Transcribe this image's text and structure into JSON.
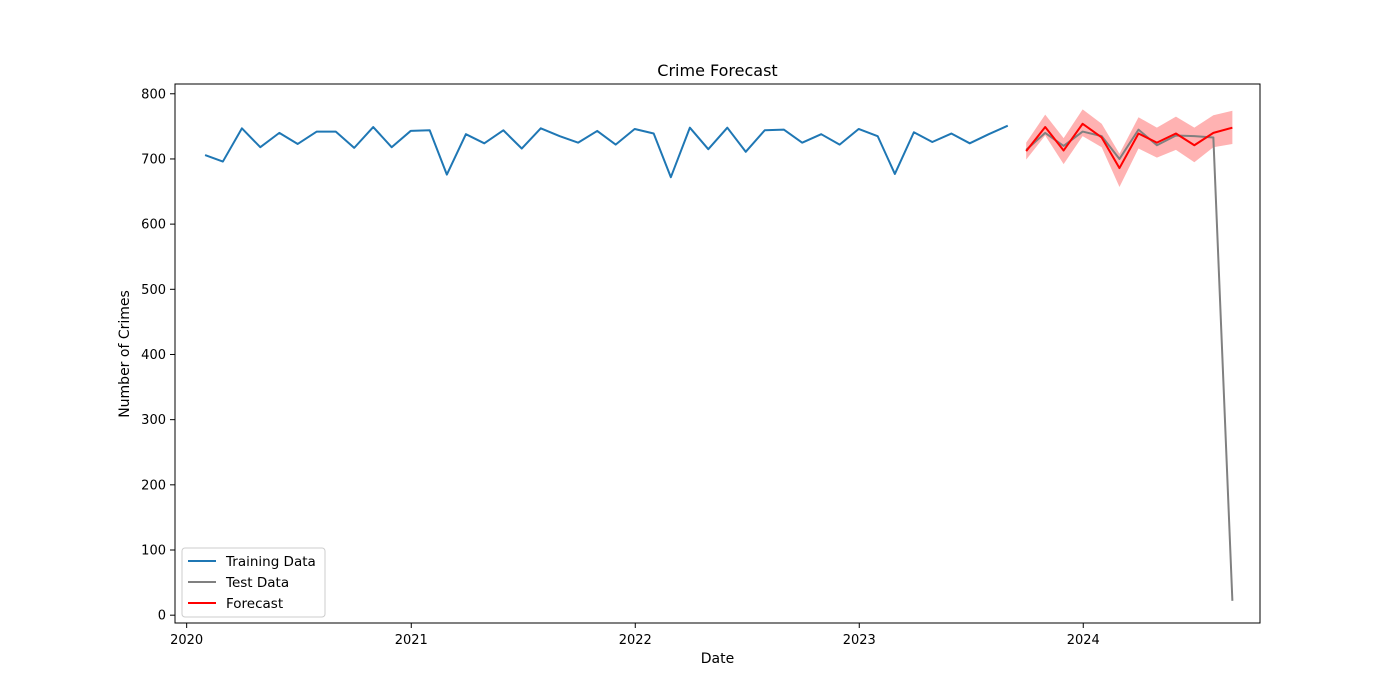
{
  "chart_data": {
    "type": "line",
    "title": "Crime Forecast",
    "xlabel": "Date",
    "ylabel": "Number of Crimes",
    "xlim": [
      "2019-12-13",
      "2024-10-15"
    ],
    "ylim": [
      -12,
      815
    ],
    "x_ticks": [
      "2020-01-01",
      "2021-01-01",
      "2022-01-01",
      "2023-01-01",
      "2024-01-01"
    ],
    "x_tick_labels": [
      "2020",
      "2021",
      "2022",
      "2023",
      "2024"
    ],
    "y_ticks": [
      0,
      100,
      200,
      300,
      400,
      500,
      600,
      700,
      800
    ],
    "y_tick_labels": [
      "0",
      "100",
      "200",
      "300",
      "400",
      "500",
      "600",
      "700",
      "800"
    ],
    "grid": false,
    "legend_position": "lower-left",
    "colors": {
      "training": "#1f77b4",
      "test": "#808080",
      "forecast": "#ff0000",
      "interval": "#ff0000"
    },
    "series": [
      {
        "name": "Training Data",
        "x": [
          "2020-01-31",
          "2020-02-29",
          "2020-03-31",
          "2020-04-30",
          "2020-05-31",
          "2020-06-30",
          "2020-07-31",
          "2020-08-31",
          "2020-09-30",
          "2020-10-31",
          "2020-11-30",
          "2020-12-31",
          "2021-01-31",
          "2021-02-28",
          "2021-03-31",
          "2021-04-30",
          "2021-05-31",
          "2021-06-30",
          "2021-07-31",
          "2021-08-31",
          "2021-09-30",
          "2021-10-31",
          "2021-11-30",
          "2021-12-31",
          "2022-01-31",
          "2022-02-28",
          "2022-03-31",
          "2022-04-30",
          "2022-05-31",
          "2022-06-30",
          "2022-07-31",
          "2022-08-31",
          "2022-09-30",
          "2022-10-31",
          "2022-11-30",
          "2022-12-31",
          "2023-01-31",
          "2023-02-28",
          "2023-03-31",
          "2023-04-30",
          "2023-05-31",
          "2023-06-30",
          "2023-07-31",
          "2023-08-31"
        ],
        "y": [
          706,
          696,
          747,
          718,
          740,
          723,
          742,
          742,
          717,
          749,
          718,
          743,
          744,
          676,
          738,
          724,
          744,
          716,
          747,
          735,
          725,
          743,
          722,
          746,
          739,
          672,
          748,
          715,
          748,
          711,
          744,
          745,
          725,
          738,
          722,
          746,
          735,
          677,
          741,
          726,
          739,
          724,
          738,
          751
        ]
      },
      {
        "name": "Test Data",
        "x": [
          "2023-09-30",
          "2023-10-31",
          "2023-11-30",
          "2023-12-31",
          "2024-01-31",
          "2024-02-29",
          "2024-03-31",
          "2024-04-30",
          "2024-05-31",
          "2024-06-30",
          "2024-07-31",
          "2024-08-31"
        ],
        "y": [
          714,
          740,
          720,
          742,
          735,
          700,
          745,
          721,
          736,
          735,
          733,
          22
        ]
      },
      {
        "name": "Forecast",
        "x": [
          "2023-09-30",
          "2023-10-31",
          "2023-11-30",
          "2023-12-31",
          "2024-01-31",
          "2024-02-29",
          "2024-03-31",
          "2024-04-30",
          "2024-05-31",
          "2024-06-30",
          "2024-07-31",
          "2024-08-31"
        ],
        "y": [
          712,
          749,
          713,
          754,
          733,
          686,
          739,
          725,
          739,
          721,
          740,
          748
        ],
        "lower": [
          699,
          736,
          692,
          735,
          718,
          657,
          716,
          702,
          714,
          695,
          718,
          723
        ],
        "upper": [
          725,
          768,
          732,
          776,
          754,
          708,
          764,
          748,
          765,
          748,
          767,
          774
        ]
      }
    ]
  }
}
